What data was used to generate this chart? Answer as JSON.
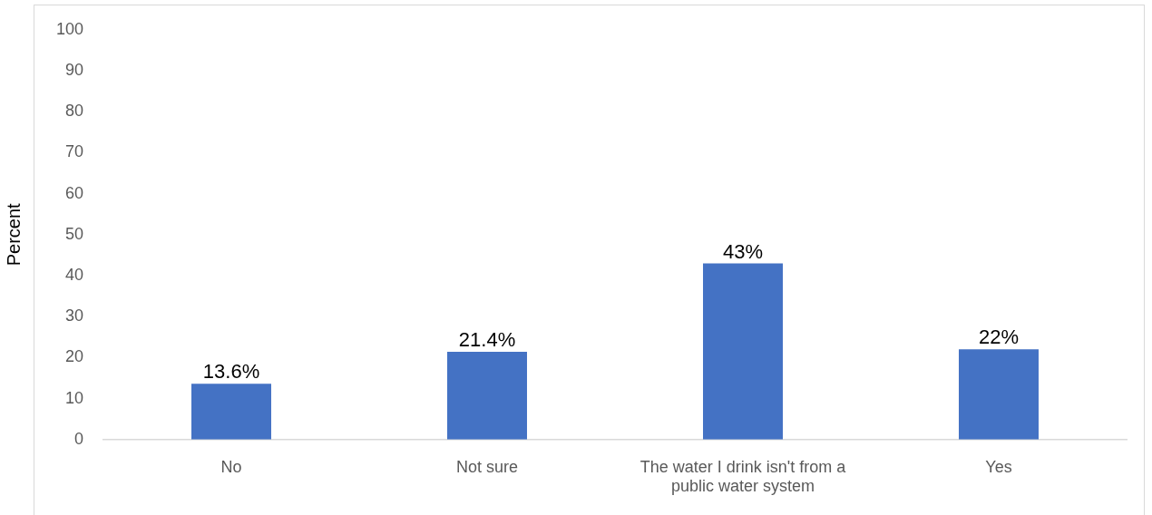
{
  "chart_data": {
    "type": "bar",
    "ylabel": "Percent",
    "categories": [
      "No",
      "Not sure",
      "The water I drink isn't from a public water system",
      "Yes"
    ],
    "values": [
      13.6,
      21.4,
      43,
      22
    ],
    "color": "#4472c4",
    "value_labels": [
      "13.6%",
      "21.4%",
      "43%",
      "22%"
    ],
    "ylim": [
      0,
      100
    ],
    "yticks": [
      0,
      10,
      20,
      30,
      40,
      50,
      60,
      70,
      80,
      90,
      100
    ],
    "grid": false
  }
}
